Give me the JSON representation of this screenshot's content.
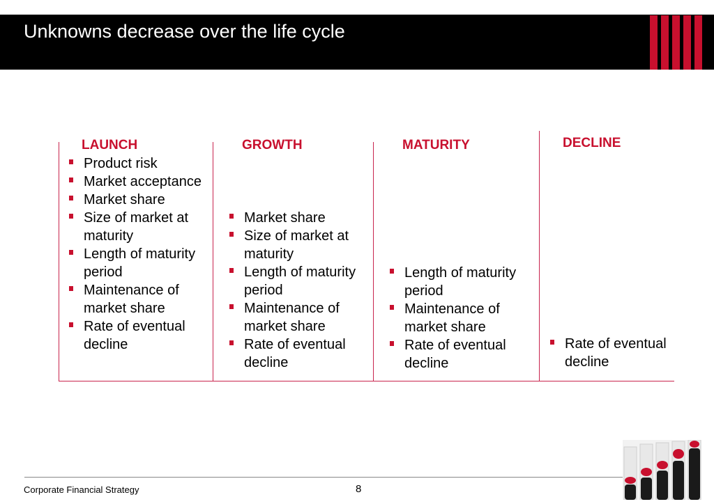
{
  "header": {
    "title": "Unknowns decrease over the life cycle"
  },
  "colors": {
    "accent": "#c8102e",
    "header_bg": "#000000",
    "rule": "#c8234d"
  },
  "stages": [
    {
      "title": "LAUNCH",
      "items": [
        "Product risk",
        "Market acceptance",
        "Market share",
        "Size of market at maturity",
        "Length of maturity period",
        "Maintenance of market share",
        "Rate of eventual decline"
      ]
    },
    {
      "title": "GROWTH",
      "items": [
        "Market share",
        "Size of market at maturity",
        "Length of maturity period",
        "Maintenance of market share",
        "Rate of eventual decline"
      ]
    },
    {
      "title": "MATURITY",
      "items": [
        "Length of maturity period",
        "Maintenance of market share",
        "Rate of eventual decline"
      ]
    },
    {
      "title": "DECLINE",
      "items": [
        "Rate of eventual decline"
      ]
    }
  ],
  "footer": {
    "text": "Corporate Financial Strategy",
    "page_number": "8"
  }
}
